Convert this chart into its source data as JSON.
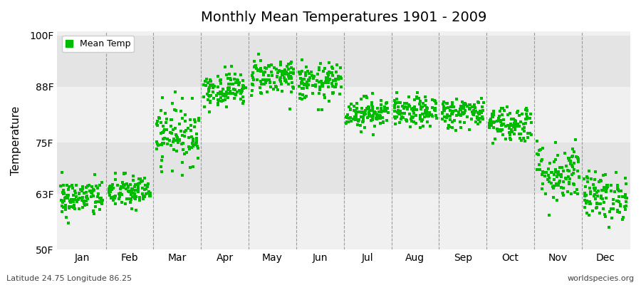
{
  "title": "Monthly Mean Temperatures 1901 - 2009",
  "ylabel": "Temperature",
  "ylim": [
    50,
    101
  ],
  "yticks": [
    50,
    63,
    75,
    88,
    100
  ],
  "ytick_labels": [
    "50F",
    "63F",
    "75F",
    "88F",
    "100F"
  ],
  "months": [
    "Jan",
    "Feb",
    "Mar",
    "Apr",
    "May",
    "Jun",
    "Jul",
    "Aug",
    "Sep",
    "Oct",
    "Nov",
    "Dec"
  ],
  "dot_color": "#00bb00",
  "bg_color": "#f0f0f0",
  "band_color1": "#f0f0f0",
  "band_color2": "#e4e4e4",
  "fig_color": "#ffffff",
  "legend_label": "Mean Temp",
  "bottom_left": "Latitude 24.75 Longitude 86.25",
  "bottom_right": "worldspecies.org",
  "monthly_means": [
    62.0,
    63.5,
    77.0,
    87.5,
    90.5,
    89.0,
    82.0,
    82.0,
    82.0,
    79.5,
    68.0,
    62.5
  ],
  "monthly_stds": [
    2.2,
    2.0,
    3.5,
    2.0,
    2.2,
    2.2,
    1.8,
    1.8,
    1.8,
    2.2,
    3.5,
    2.8
  ],
  "n_years": 109,
  "title_fontsize": 14,
  "axis_fontsize": 10,
  "dot_size": 5
}
